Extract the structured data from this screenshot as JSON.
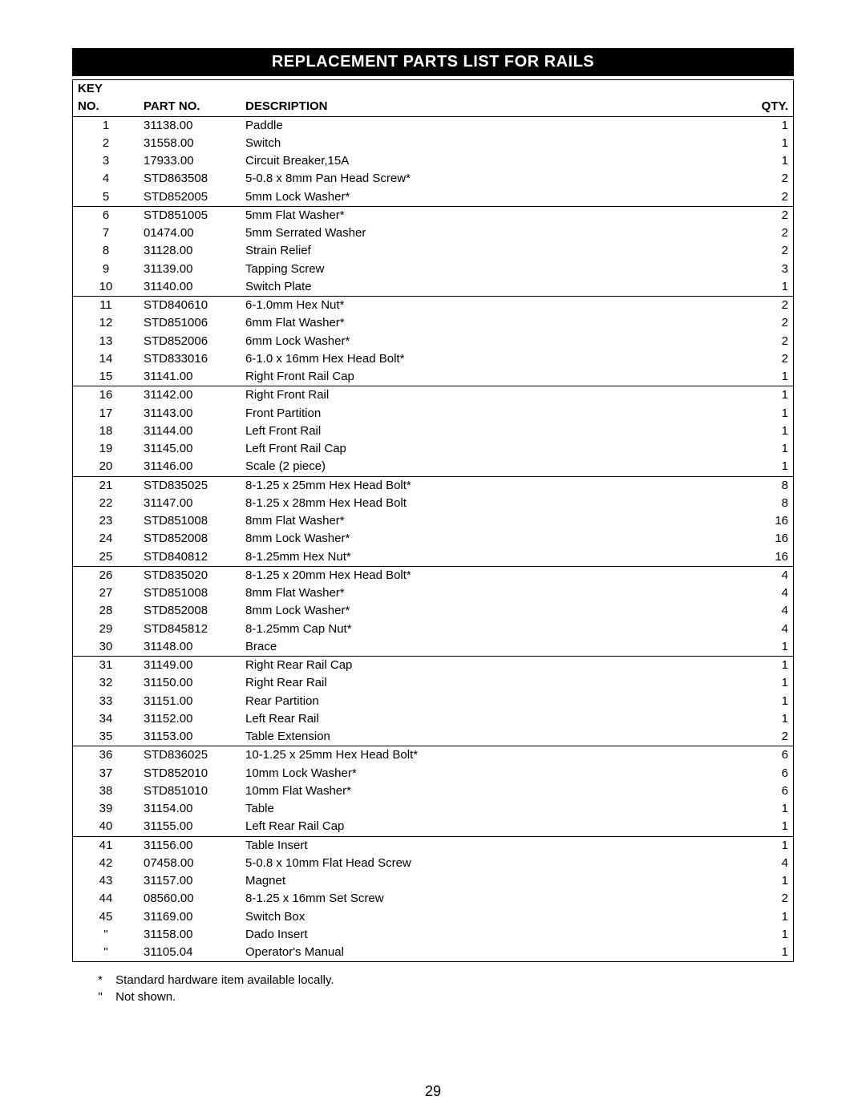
{
  "title": "REPLACEMENT PARTS LIST FOR RAILS",
  "headers": {
    "key_top": "KEY",
    "key_bottom": "NO.",
    "part": "PART NO.",
    "desc": "DESCRIPTION",
    "qty": "QTY."
  },
  "columns": {
    "key_align": "center",
    "qty_align": "right"
  },
  "groups": [
    [
      {
        "key": "1",
        "part": "31138.00",
        "desc": "Paddle",
        "qty": "1"
      },
      {
        "key": "2",
        "part": "31558.00",
        "desc": "Switch",
        "qty": "1"
      },
      {
        "key": "3",
        "part": "17933.00",
        "desc": "Circuit Breaker,15A",
        "qty": "1"
      },
      {
        "key": "4",
        "part": "STD863508",
        "desc": "5-0.8 x 8mm Pan Head Screw*",
        "qty": "2"
      },
      {
        "key": "5",
        "part": "STD852005",
        "desc": "5mm Lock Washer*",
        "qty": "2"
      }
    ],
    [
      {
        "key": "6",
        "part": "STD851005",
        "desc": "5mm Flat Washer*",
        "qty": "2"
      },
      {
        "key": "7",
        "part": "01474.00",
        "desc": "5mm Serrated Washer",
        "qty": "2"
      },
      {
        "key": "8",
        "part": "31128.00",
        "desc": "Strain Relief",
        "qty": "2"
      },
      {
        "key": "9",
        "part": "31139.00",
        "desc": "Tapping Screw",
        "qty": "3"
      },
      {
        "key": "10",
        "part": "31140.00",
        "desc": "Switch Plate",
        "qty": "1"
      }
    ],
    [
      {
        "key": "11",
        "part": "STD840610",
        "desc": "6-1.0mm Hex Nut*",
        "qty": "2"
      },
      {
        "key": "12",
        "part": "STD851006",
        "desc": "6mm Flat Washer*",
        "qty": "2"
      },
      {
        "key": "13",
        "part": "STD852006",
        "desc": "6mm Lock Washer*",
        "qty": "2"
      },
      {
        "key": "14",
        "part": "STD833016",
        "desc": "6-1.0 x 16mm Hex Head Bolt*",
        "qty": "2"
      },
      {
        "key": "15",
        "part": "31141.00",
        "desc": "Right Front Rail Cap",
        "qty": "1"
      }
    ],
    [
      {
        "key": "16",
        "part": "31142.00",
        "desc": "Right Front Rail",
        "qty": "1"
      },
      {
        "key": "17",
        "part": "31143.00",
        "desc": "Front Partition",
        "qty": "1"
      },
      {
        "key": "18",
        "part": "31144.00",
        "desc": "Left Front Rail",
        "qty": "1"
      },
      {
        "key": "19",
        "part": "31145.00",
        "desc": "Left Front Rail Cap",
        "qty": "1"
      },
      {
        "key": "20",
        "part": "31146.00",
        "desc": "Scale (2 piece)",
        "qty": "1"
      }
    ],
    [
      {
        "key": "21",
        "part": "STD835025",
        "desc": "8-1.25 x 25mm Hex Head Bolt*",
        "qty": "8"
      },
      {
        "key": "22",
        "part": "31147.00",
        "desc": "8-1.25 x 28mm Hex Head Bolt",
        "qty": "8"
      },
      {
        "key": "23",
        "part": "STD851008",
        "desc": "8mm Flat Washer*",
        "qty": "16"
      },
      {
        "key": "24",
        "part": "STD852008",
        "desc": "8mm Lock Washer*",
        "qty": "16"
      },
      {
        "key": "25",
        "part": "STD840812",
        "desc": "8-1.25mm Hex Nut*",
        "qty": "16"
      }
    ],
    [
      {
        "key": "26",
        "part": "STD835020",
        "desc": "8-1.25 x 20mm Hex Head Bolt*",
        "qty": "4"
      },
      {
        "key": "27",
        "part": "STD851008",
        "desc": "8mm Flat Washer*",
        "qty": "4"
      },
      {
        "key": "28",
        "part": "STD852008",
        "desc": "8mm Lock Washer*",
        "qty": "4"
      },
      {
        "key": "29",
        "part": "STD845812",
        "desc": "8-1.25mm Cap Nut*",
        "qty": "4"
      },
      {
        "key": "30",
        "part": "31148.00",
        "desc": "Brace",
        "qty": "1"
      }
    ],
    [
      {
        "key": "31",
        "part": "31149.00",
        "desc": "Right Rear Rail Cap",
        "qty": "1"
      },
      {
        "key": "32",
        "part": "31150.00",
        "desc": "Right Rear Rail",
        "qty": "1"
      },
      {
        "key": "33",
        "part": "31151.00",
        "desc": "Rear Partition",
        "qty": "1"
      },
      {
        "key": "34",
        "part": "31152.00",
        "desc": "Left Rear Rail",
        "qty": "1"
      },
      {
        "key": "35",
        "part": "31153.00",
        "desc": "Table Extension",
        "qty": "2"
      }
    ],
    [
      {
        "key": "36",
        "part": "STD836025",
        "desc": "10-1.25 x 25mm Hex Head Bolt*",
        "qty": "6"
      },
      {
        "key": "37",
        "part": "STD852010",
        "desc": "10mm Lock Washer*",
        "qty": "6"
      },
      {
        "key": "38",
        "part": "STD851010",
        "desc": "10mm Flat Washer*",
        "qty": "6"
      },
      {
        "key": "39",
        "part": "31154.00",
        "desc": "Table",
        "qty": "1"
      },
      {
        "key": "40",
        "part": "31155.00",
        "desc": "Left Rear Rail Cap",
        "qty": "1"
      }
    ],
    [
      {
        "key": "41",
        "part": "31156.00",
        "desc": "Table Insert",
        "qty": "1"
      },
      {
        "key": "42",
        "part": "07458.00",
        "desc": "5-0.8 x 10mm Flat Head Screw",
        "qty": "4"
      },
      {
        "key": "43",
        "part": "31157.00",
        "desc": "Magnet",
        "qty": "1"
      },
      {
        "key": "44",
        "part": "08560.00",
        "desc": "8-1.25 x 16mm Set Screw",
        "qty": "2"
      },
      {
        "key": "45",
        "part": "31169.00",
        "desc": "Switch Box",
        "qty": "1"
      },
      {
        "key": "\"",
        "part": "31158.00",
        "desc": "Dado Insert",
        "qty": "1"
      },
      {
        "key": "\"",
        "part": "31105.04",
        "desc": "Operator's Manual",
        "qty": "1"
      }
    ]
  ],
  "footnotes": [
    {
      "symbol": "*",
      "text": "Standard hardware item available locally."
    },
    {
      "symbol": "\"",
      "text": "Not shown."
    }
  ],
  "page_number": "29",
  "styling": {
    "background_color": "#ffffff",
    "title_bg": "#000000",
    "title_fg": "#ffffff",
    "border_color": "#000000",
    "font_family": "Arial",
    "body_fontsize_pt": 11,
    "title_fontsize_pt": 15,
    "row_line_height": 1.35
  }
}
